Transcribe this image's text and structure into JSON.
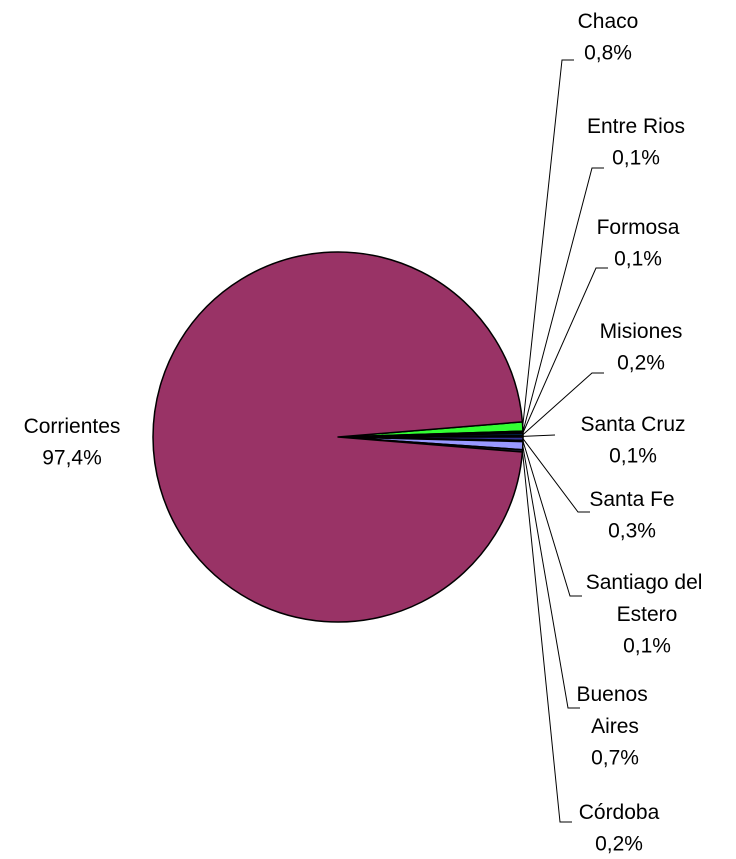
{
  "chart_data": {
    "type": "pie",
    "categories": [
      "Chaco",
      "Entre Rios",
      "Formosa",
      "Misiones",
      "Santa Cruz",
      "Santa Fe",
      "Santiago del Estero",
      "Buenos Aires",
      "Córdoba",
      "Corrientes"
    ],
    "values": [
      0.8,
      0.1,
      0.1,
      0.2,
      0.1,
      0.3,
      0.1,
      0.7,
      0.2,
      97.4
    ],
    "value_labels": [
      "0,8%",
      "0,1%",
      "0,1%",
      "0,2%",
      "0,1%",
      "0,3%",
      "0,1%",
      "0,7%",
      "0,2%",
      "97,4%"
    ],
    "colors": [
      "#33ff33",
      "#000080",
      "#1a1a1a",
      "#003366",
      "#000000",
      "#333399",
      "#000033",
      "#9999ff",
      "#202040",
      "#993366"
    ]
  }
}
